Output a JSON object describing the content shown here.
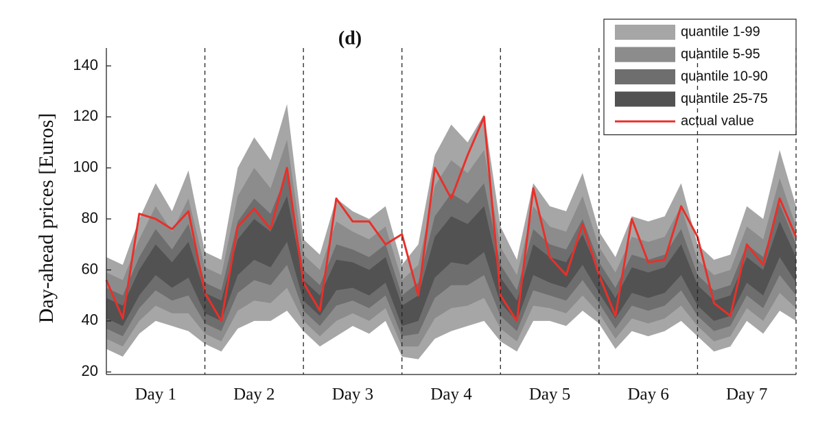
{
  "chart_data": {
    "type": "fan",
    "title": "(d)",
    "y_label": "Day-ahead prices [Euros]",
    "x": [
      0,
      4,
      8,
      12,
      16,
      20,
      24,
      28,
      32,
      36,
      40,
      44,
      48,
      52,
      56,
      60,
      64,
      68,
      72,
      76,
      80,
      84,
      88,
      92,
      96,
      100,
      104,
      108,
      112,
      116,
      120,
      124,
      128,
      132,
      136,
      140,
      144,
      148,
      152,
      156,
      160,
      164,
      168
    ],
    "xlim": [
      0,
      168
    ],
    "xticks": [
      {
        "value": 12,
        "label": "Day 1"
      },
      {
        "value": 36,
        "label": "Day 2"
      },
      {
        "value": 60,
        "label": "Day 3"
      },
      {
        "value": 84,
        "label": "Day 4"
      },
      {
        "value": 108,
        "label": "Day 5"
      },
      {
        "value": 132,
        "label": "Day 6"
      },
      {
        "value": 156,
        "label": "Day 7"
      }
    ],
    "separators": [
      24,
      48,
      72,
      96,
      120,
      144,
      168
    ],
    "ylim": [
      19,
      147
    ],
    "yticks": [
      20,
      40,
      60,
      80,
      100,
      120,
      140
    ],
    "series": [
      {
        "name": "quantile 1-99",
        "color": "#a6a6a6",
        "lower": [
          29,
          26,
          35,
          40,
          38,
          36,
          31,
          28,
          37,
          40,
          40,
          44,
          36,
          30,
          34,
          38,
          35,
          40,
          26,
          25,
          33,
          36,
          38,
          40,
          32,
          28,
          40,
          40,
          38,
          44,
          39,
          29,
          36,
          34,
          36,
          40,
          34,
          28,
          30,
          40,
          35,
          44,
          40
        ],
        "upper": [
          65,
          62,
          80,
          94,
          83,
          99,
          67,
          64,
          100,
          112,
          103,
          125,
          72,
          66,
          88,
          83,
          80,
          85,
          62,
          70,
          105,
          117,
          110,
          121,
          77,
          64,
          94,
          85,
          83,
          98,
          75,
          65,
          81,
          79,
          81,
          94,
          70,
          64,
          66,
          85,
          80,
          107,
          85
        ]
      },
      {
        "name": "quantile 5-95",
        "color": "#8c8c8c",
        "lower": [
          33,
          30,
          40,
          46,
          43,
          43,
          35,
          32,
          44,
          48,
          47,
          53,
          40,
          34,
          40,
          43,
          40,
          45,
          30,
          30,
          41,
          45,
          46,
          49,
          37,
          32,
          46,
          45,
          43,
          50,
          43,
          33,
          41,
          39,
          41,
          46,
          38,
          32,
          34,
          45,
          40,
          51,
          45
        ],
        "upper": [
          59,
          56,
          72,
          85,
          75,
          88,
          61,
          58,
          89,
          100,
          92,
          111,
          66,
          60,
          79,
          75,
          72,
          77,
          56,
          62,
          93,
          103,
          98,
          107,
          69,
          58,
          85,
          77,
          75,
          89,
          69,
          59,
          73,
          71,
          73,
          85,
          64,
          58,
          60,
          77,
          72,
          96,
          77
        ]
      },
      {
        "name": "quantile 10-90",
        "color": "#6e6e6e",
        "lower": [
          37,
          34,
          45,
          52,
          48,
          50,
          39,
          36,
          51,
          56,
          54,
          62,
          44,
          38,
          46,
          48,
          45,
          50,
          34,
          35,
          49,
          54,
          54,
          58,
          42,
          36,
          52,
          50,
          48,
          56,
          47,
          37,
          46,
          44,
          46,
          52,
          42,
          36,
          38,
          50,
          45,
          58,
          50
        ],
        "upper": [
          53,
          50,
          65,
          76,
          68,
          78,
          55,
          52,
          79,
          88,
          82,
          98,
          60,
          54,
          70,
          68,
          65,
          70,
          50,
          55,
          81,
          90,
          86,
          94,
          62,
          52,
          76,
          70,
          68,
          80,
          63,
          53,
          66,
          64,
          66,
          76,
          58,
          52,
          54,
          70,
          65,
          86,
          70
        ]
      },
      {
        "name": "quantile 25-75",
        "color": "#525252",
        "lower": [
          41,
          38,
          50,
          58,
          53,
          57,
          43,
          40,
          58,
          64,
          61,
          71,
          48,
          42,
          52,
          53,
          50,
          55,
          38,
          40,
          57,
          63,
          62,
          67,
          47,
          40,
          58,
          55,
          53,
          62,
          51,
          41,
          51,
          49,
          51,
          58,
          46,
          40,
          42,
          55,
          50,
          65,
          55
        ],
        "upper": [
          49,
          46,
          60,
          70,
          63,
          71,
          51,
          48,
          72,
          80,
          75,
          89,
          56,
          50,
          64,
          63,
          60,
          65,
          46,
          50,
          73,
          81,
          78,
          85,
          57,
          48,
          70,
          65,
          63,
          74,
          59,
          49,
          61,
          59,
          61,
          70,
          54,
          48,
          50,
          65,
          60,
          79,
          65
        ]
      },
      {
        "name": "actual value",
        "color": "#e8302a",
        "values": [
          56,
          41,
          82,
          80,
          76,
          83,
          51,
          40,
          77,
          84,
          76,
          100,
          55,
          44,
          88,
          79,
          79,
          70,
          74,
          50,
          100,
          88,
          105,
          120,
          50,
          40,
          92,
          65,
          58,
          78,
          58,
          42,
          80,
          63,
          64,
          85,
          73,
          47,
          42,
          70,
          62,
          88,
          73
        ]
      }
    ]
  }
}
